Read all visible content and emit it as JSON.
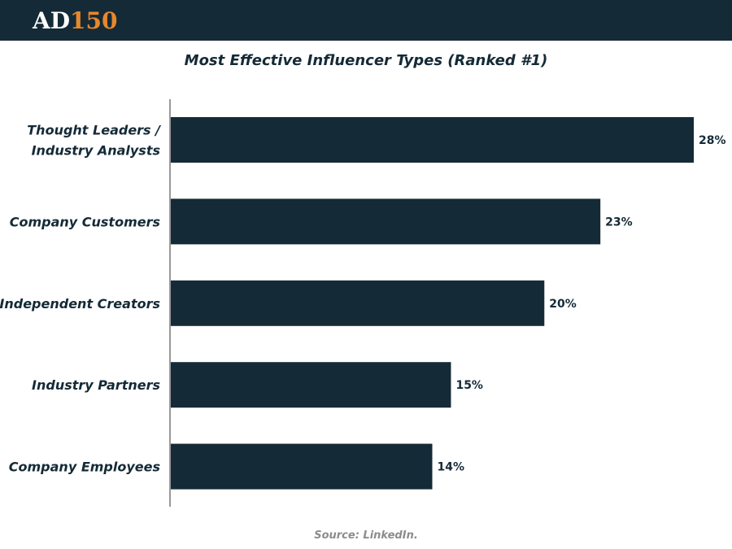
{
  "header": {
    "logo_part_a": "AD",
    "logo_part_b": "150",
    "bar_color": "#142a37",
    "logo_accent_color": "#e8872b"
  },
  "source_note": "Source: LinkedIn.",
  "chart_data": {
    "type": "bar",
    "orientation": "horizontal",
    "title": "Most Effective Influencer Types (Ranked #1)",
    "categories": [
      [
        "Thought Leaders /",
        "Industry Analysts"
      ],
      [
        "Company Customers"
      ],
      [
        "Independent Creators"
      ],
      [
        "Industry Partners"
      ],
      [
        "Company Employees"
      ]
    ],
    "values": [
      28,
      23,
      20,
      15,
      14
    ],
    "value_labels": [
      "28%",
      "23%",
      "20%",
      "15%",
      "14%"
    ],
    "xlim": [
      0,
      28
    ],
    "grid": false,
    "legend": "none",
    "bar_color": "#142a37"
  }
}
